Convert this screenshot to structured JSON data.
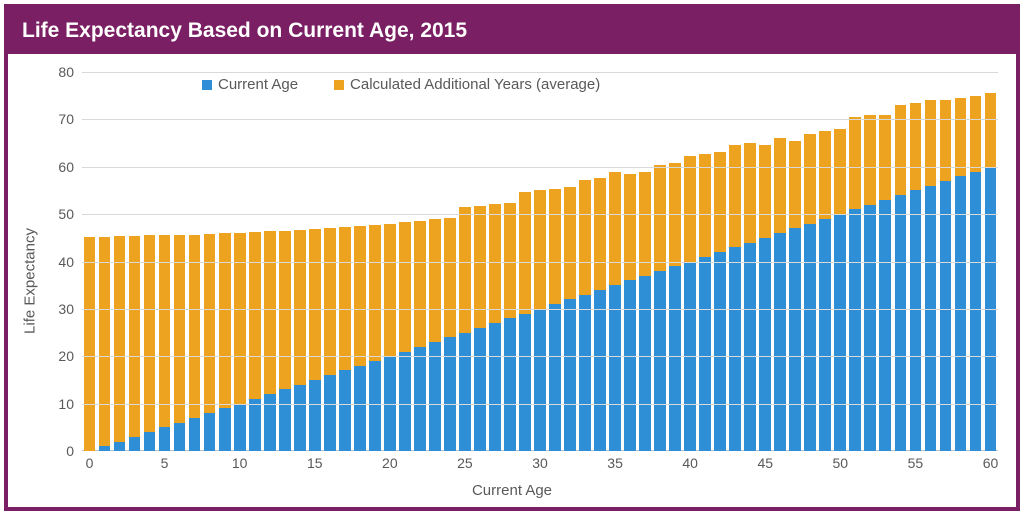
{
  "chart": {
    "type": "stacked-bar",
    "title": "Life Expectancy Based on Current Age, 2015",
    "title_fontsize": 21,
    "title_color": "#ffffff",
    "header_background": "#7a1f63",
    "frame_border_color": "#7a1f63",
    "background_color": "#ffffff",
    "grid_color": "#d9d9d9",
    "axis_line_color": "#bfbfbf",
    "tick_label_fontsize": 14,
    "tick_label_color": "#595959",
    "axis_title_fontsize": 15,
    "axis_title_color": "#595959",
    "x_axis_title": "Current Age",
    "y_axis_title": "Life Expectancy",
    "ylim": [
      0,
      80
    ],
    "ytick_step": 10,
    "x_categories": [
      0,
      1,
      2,
      3,
      4,
      5,
      6,
      7,
      8,
      9,
      10,
      11,
      12,
      13,
      14,
      15,
      16,
      17,
      18,
      19,
      20,
      21,
      22,
      23,
      24,
      25,
      26,
      27,
      28,
      29,
      30,
      31,
      32,
      33,
      34,
      35,
      36,
      37,
      38,
      39,
      40,
      41,
      42,
      43,
      44,
      45,
      46,
      47,
      48,
      49,
      50,
      51,
      52,
      53,
      54,
      55,
      56,
      57,
      58,
      59,
      60
    ],
    "x_tick_step": 5,
    "series": [
      {
        "name": "Current Age",
        "color": "#2f8fd6",
        "values": [
          0,
          1,
          2,
          3,
          4,
          5,
          6,
          7,
          8,
          9,
          10,
          11,
          12,
          13,
          14,
          15,
          16,
          17,
          18,
          19,
          20,
          21,
          22,
          23,
          24,
          25,
          26,
          27,
          28,
          29,
          30,
          31,
          32,
          33,
          34,
          35,
          36,
          37,
          38,
          39,
          40,
          41,
          42,
          43,
          44,
          45,
          46,
          47,
          48,
          49,
          50,
          51,
          52,
          53,
          54,
          55,
          56,
          57,
          58,
          59,
          60
        ]
      },
      {
        "name": "Calculated Additional Years (average)",
        "color": "#eda320",
        "values": [
          45.2,
          44.2,
          43.3,
          42.4,
          41.5,
          40.5,
          39.6,
          38.7,
          37.9,
          37.0,
          36.1,
          35.2,
          34.4,
          33.5,
          32.7,
          31.9,
          31.1,
          30.3,
          29.5,
          28.8,
          28.0,
          27.3,
          26.6,
          25.9,
          25.2,
          26.5,
          25.8,
          25.1,
          24.4,
          25.7,
          25.1,
          24.4,
          23.8,
          24.2,
          23.6,
          24.0,
          22.4,
          21.8,
          22.3,
          21.7,
          22.2,
          21.6,
          21.1,
          21.5,
          21.0,
          19.5,
          20.0,
          18.5,
          19.0,
          18.5,
          18.0,
          19.5,
          19.0,
          18.0,
          19.0,
          18.5,
          18.0,
          17.0,
          16.5,
          16.0,
          15.5
        ]
      }
    ],
    "bar_width_ratio": 0.78,
    "legend": {
      "items": [
        {
          "label": "Current Age",
          "color": "#2f8fd6"
        },
        {
          "label": "Calculated Additional Years (average)",
          "color": "#eda320"
        }
      ],
      "fontsize": 15,
      "color": "#595959"
    }
  }
}
